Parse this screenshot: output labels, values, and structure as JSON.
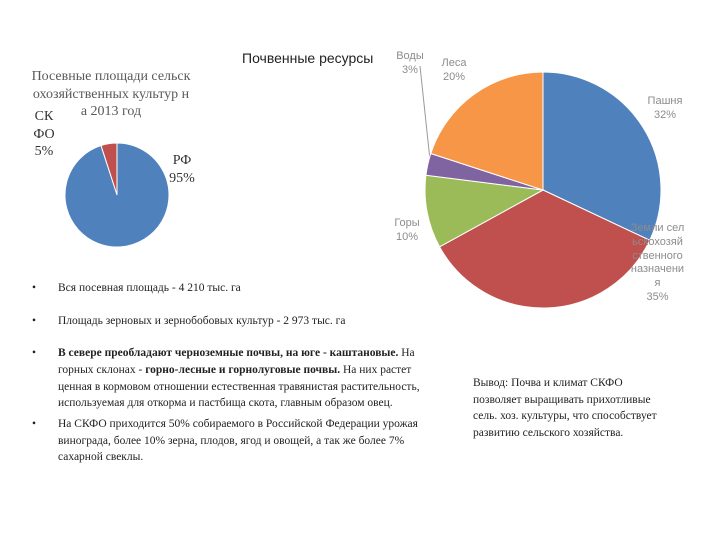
{
  "chart_data": [
    {
      "type": "pie",
      "title": "Посевные площади сельскохозяйственных культур на 2013 год",
      "categories": [
        "СКФО",
        "РФ"
      ],
      "values": [
        5,
        95
      ],
      "value_labels": [
        "5%",
        "95%"
      ],
      "colors": [
        "#c0504d",
        "#4f81bd"
      ],
      "startangle": -18
    },
    {
      "type": "pie",
      "title": "Почвенные ресурсы",
      "categories": [
        "Пашня",
        "Земли сельскохозяйственного назначения",
        "Горы",
        "Воды",
        "Леса"
      ],
      "values": [
        32,
        35,
        10,
        3,
        20
      ],
      "value_labels": [
        "32%",
        "35%",
        "10%",
        "3%",
        "20%"
      ],
      "colors": [
        "#4f81bd",
        "#c0504d",
        "#9bbb59",
        "#8064a2",
        "#f79646"
      ],
      "startangle": 0
    }
  ],
  "bullets": [
    [
      {
        "text": "Вся посевная площадь - 4 210 тыс. га",
        "bold": false
      }
    ],
    [
      {
        "text": "Площадь зерновых и зернобобовых культур - 2 973 тыс. га",
        "bold": false
      }
    ],
    [
      {
        "text": "В севере преобладают черноземные почвы, на юге - каштановые.",
        "bold": true
      },
      {
        "text": " На горных склонах - ",
        "bold": false
      },
      {
        "text": "горно-лесные и горнолуговые почвы.",
        "bold": true
      },
      {
        "text": " На них растет ценная в кормовом отношении естественная травянистая растительность, используемая для откорма и пастбища скота, главным образом овец.",
        "bold": false
      }
    ],
    [
      {
        "text": "На СКФО приходится 50% собираемого в Российской Федерации урожая винограда, более 10% зерна, плодов, ягод и овощей, а так же более 7% сахарной свеклы.",
        "bold": false
      }
    ]
  ],
  "conclusion": "Вывод: Почва и климат СКФО позволяет выращивать прихотливые сель. хоз. культуры, что способствует развитию сельского хозяйства."
}
